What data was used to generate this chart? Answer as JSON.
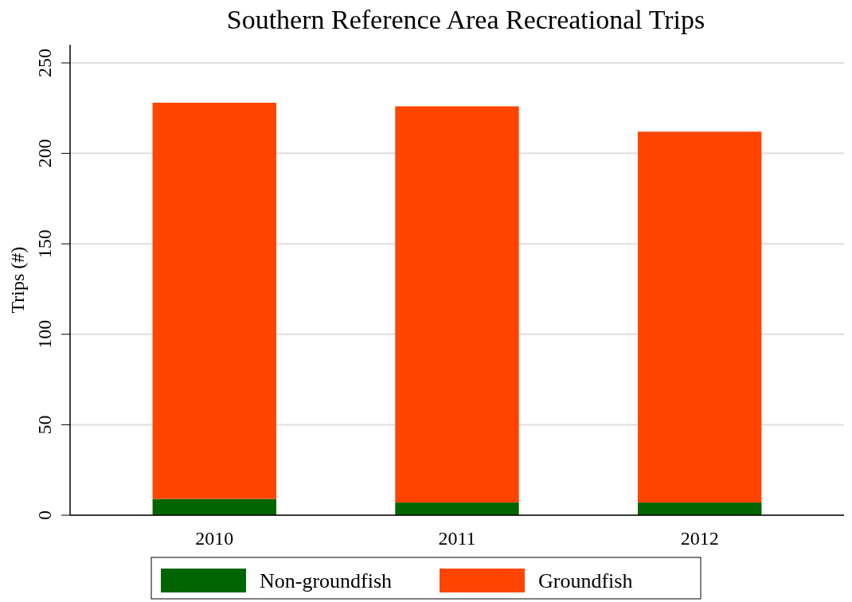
{
  "chart_data": {
    "type": "bar",
    "title": "Southern Reference Area Recreational Trips",
    "ylabel": "Trips (#)",
    "categories": [
      "2010",
      "2011",
      "2012"
    ],
    "stacked": true,
    "series": [
      {
        "name": "Non-groundfish",
        "color": "#006400",
        "values": [
          9,
          7,
          7
        ]
      },
      {
        "name": "Groundfish",
        "color": "#ff4500",
        "values": [
          219,
          219,
          205
        ]
      }
    ],
    "ylim": [
      0,
      260
    ],
    "yticks": [
      0,
      50,
      100,
      150,
      200,
      250
    ],
    "grid": "y",
    "legend": "bottom"
  }
}
